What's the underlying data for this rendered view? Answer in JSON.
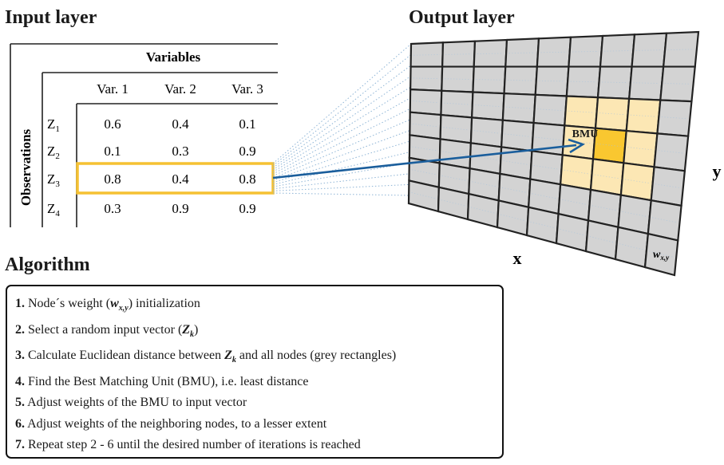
{
  "titles": {
    "input": "Input layer",
    "output": "Output layer",
    "algorithm": "Algorithm"
  },
  "table": {
    "group_header": "Variables",
    "row_group_label": "Observations",
    "columns": [
      "Var. 1",
      "Var. 2",
      "Var. 3"
    ],
    "rows": [
      {
        "label": "Z",
        "sub": "1",
        "values": [
          "0.6",
          "0.4",
          "0.1"
        ]
      },
      {
        "label": "Z",
        "sub": "2",
        "values": [
          "0.1",
          "0.3",
          "0.9"
        ]
      },
      {
        "label": "Z",
        "sub": "3",
        "values": [
          "0.8",
          "0.4",
          "0.8"
        ],
        "highlighted": true
      },
      {
        "label": "Z",
        "sub": "4",
        "values": [
          "0.3",
          "0.9",
          "0.9"
        ]
      }
    ]
  },
  "output_grid": {
    "bmu_label": "BMU",
    "x_label": "x",
    "y_label": "y",
    "weight_label": "w",
    "weight_sub": "x,y",
    "node_color": "#d3d3d3",
    "neighborhood_color": "#fce7b4",
    "bmu_color": "#f9c730",
    "arrow_color": "#1a5e9c",
    "highlight_color": "#f5c132"
  },
  "algorithm": {
    "steps": [
      {
        "num": "1.",
        "parts": [
          {
            "t": " Node´s weight ("
          },
          {
            "t": "w",
            "bi": true
          },
          {
            "t": "x,y",
            "sub": true,
            "bi": true
          },
          {
            "t": ") initialization"
          }
        ]
      },
      {
        "num": "2.",
        "parts": [
          {
            "t": " Select a random input vector ("
          },
          {
            "t": "Z",
            "bi": true
          },
          {
            "t": "k",
            "sub": true,
            "bi": true
          },
          {
            "t": ")"
          }
        ]
      },
      {
        "num": "3.",
        "parts": [
          {
            "t": " Calculate Euclidean distance between "
          },
          {
            "t": "Z",
            "bi": true
          },
          {
            "t": "k",
            "sub": true,
            "bi": true
          },
          {
            "t": " and all nodes (grey rectangles)"
          }
        ]
      },
      {
        "num": "4.",
        "parts": [
          {
            "t": " Find the Best Matching Unit (BMU), i.e. least distance"
          }
        ]
      },
      {
        "num": "5.",
        "parts": [
          {
            "t": " Adjust weights of the BMU to input vector"
          }
        ]
      },
      {
        "num": "6.",
        "parts": [
          {
            "t": " Adjust weights of the neighboring nodes, to a lesser extent"
          }
        ]
      },
      {
        "num": "7.",
        "parts": [
          {
            "t": " Repeat step 2 - 6 until the desired number of iterations is reached"
          }
        ]
      }
    ]
  }
}
